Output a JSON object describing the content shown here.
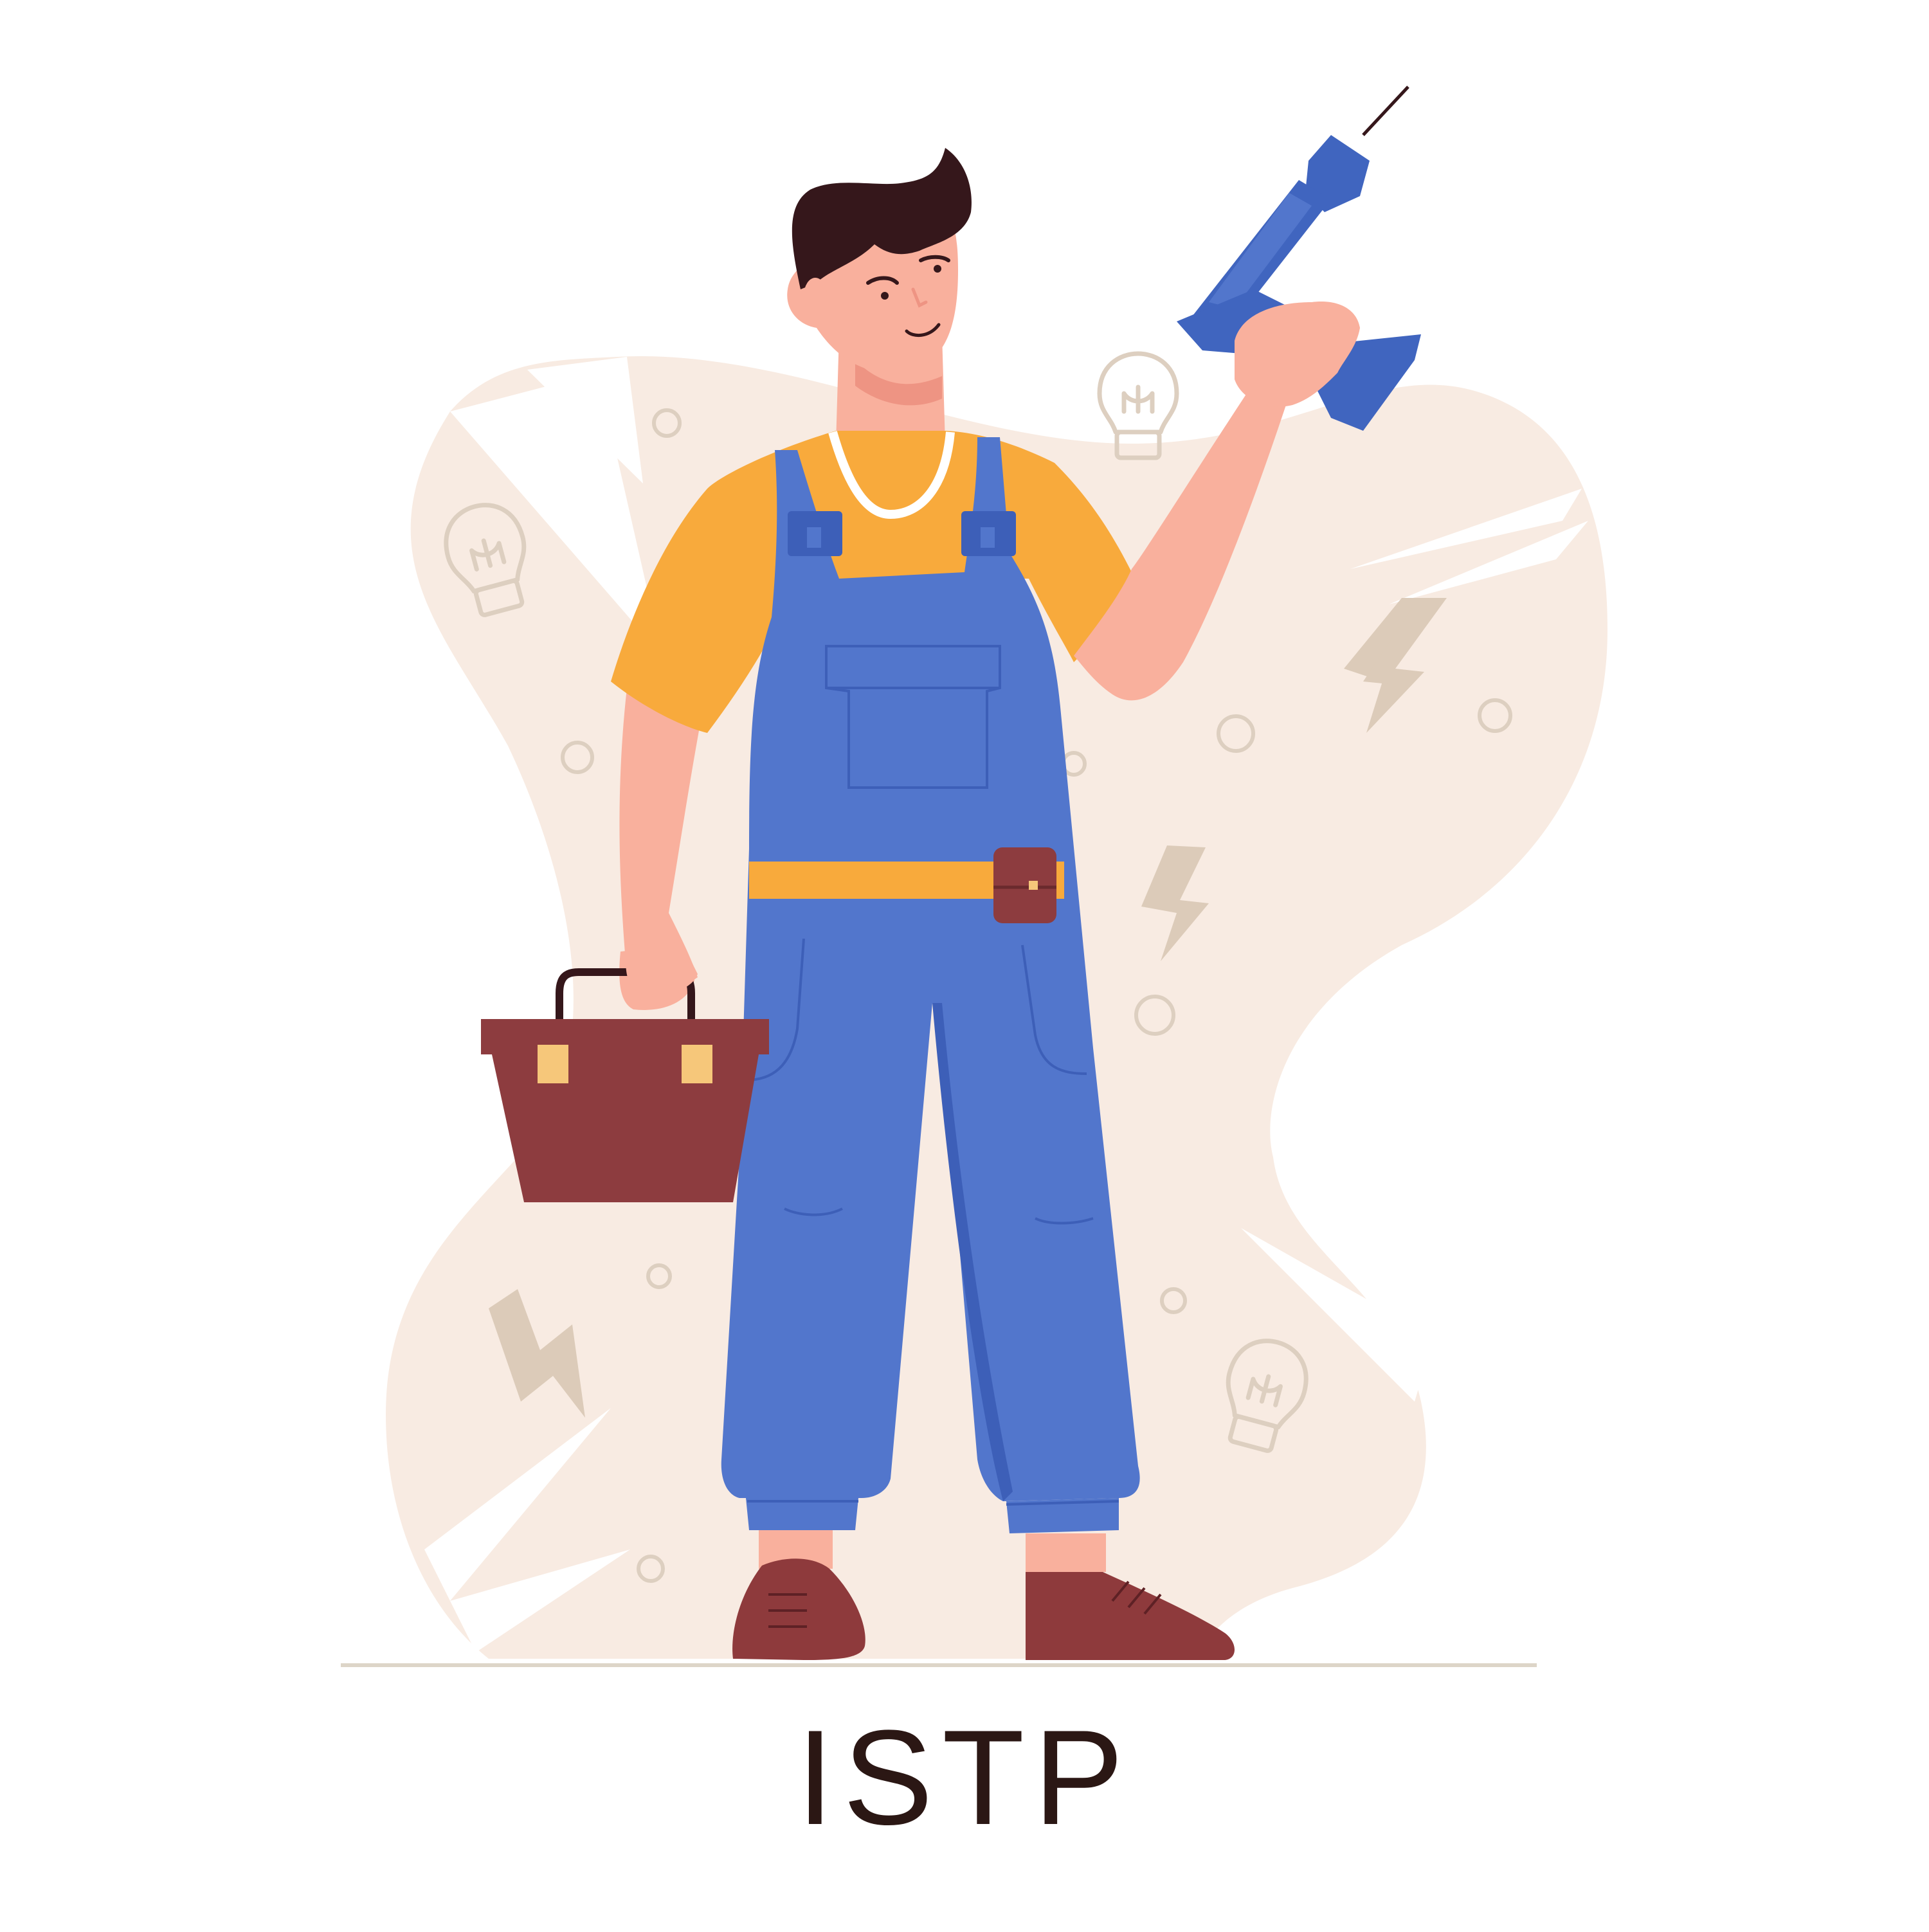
{
  "caption": "ISTP",
  "colors": {
    "background_blob": "#f8ebe2",
    "decor": "#ddcfc0",
    "lightning": "#dccbb9",
    "skin": "#f9b09d",
    "skin_shadow": "#ee9483",
    "hair": "#35171b",
    "shirt": "#f8aa3c",
    "overalls": "#5276cc",
    "overalls_dark": "#3d5fb8",
    "drill": "#4065bf",
    "toolbox": "#8d3c3f",
    "toolbox_latch": "#f6c77a",
    "shoes": "#8e3a3c",
    "ground": "#ddd5c8",
    "text": "#2b1714"
  }
}
